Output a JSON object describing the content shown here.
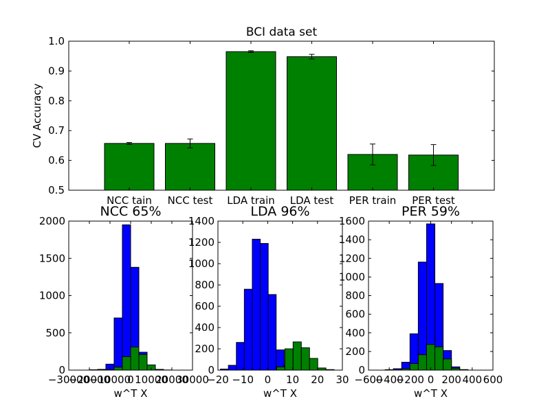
{
  "chart_data": [
    {
      "type": "bar",
      "title": "BCI data set",
      "xlabel": "",
      "ylabel": "CV Accuracy",
      "ylim": [
        0.5,
        1.0
      ],
      "yticks": [
        "0.5",
        "0.6",
        "0.7",
        "0.8",
        "0.9",
        "1.0"
      ],
      "categories": [
        "NCC tain",
        "NCC test",
        "LDA train",
        "LDA test",
        "PER train",
        "PER test"
      ],
      "values": [
        0.657,
        0.657,
        0.965,
        0.948,
        0.62,
        0.618
      ],
      "errors": [
        0.003,
        0.015,
        0.003,
        0.008,
        0.035,
        0.035
      ],
      "bar_color": "#008000",
      "grid": false
    },
    {
      "type": "histogram",
      "title": "NCC 65%",
      "xlabel": "w^T X",
      "ylabel": "",
      "xlim": [
        -30000,
        30000
      ],
      "ylim": [
        0,
        2000
      ],
      "xticks": [
        "−30000",
        "−20000",
        "−10000",
        "0",
        "10000",
        "20000",
        "30000"
      ],
      "yticks": [
        "0",
        "500",
        "1000",
        "1500",
        "2000"
      ],
      "series": [
        {
          "color": "#0000ff",
          "bin_edges": [
            -20000,
            -16000,
            -12000,
            -8000,
            -4000,
            0,
            4000,
            8000,
            12000,
            16000,
            20000
          ],
          "counts": [
            5,
            10,
            80,
            700,
            1950,
            1380,
            240,
            30,
            5,
            0
          ]
        },
        {
          "color": "#008000",
          "bin_edges": [
            -20000,
            -16000,
            -12000,
            -8000,
            -4000,
            0,
            4000,
            8000,
            12000,
            16000,
            20000
          ],
          "counts": [
            0,
            0,
            5,
            40,
            180,
            310,
            210,
            70,
            10,
            2
          ]
        }
      ]
    },
    {
      "type": "histogram",
      "title": "LDA 96%",
      "xlabel": "w^T X",
      "ylabel": "",
      "xlim": [
        -20,
        30
      ],
      "ylim": [
        0,
        1400
      ],
      "xticks": [
        "−20",
        "−10",
        "0",
        "10",
        "20",
        "30"
      ],
      "yticks": [
        "0",
        "200",
        "400",
        "600",
        "800",
        "1000",
        "1200",
        "1400"
      ],
      "series": [
        {
          "color": "#0000ff",
          "bin_edges": [
            -19,
            -15.8,
            -12.6,
            -9.4,
            -6.2,
            -3.0,
            0.2,
            3.4,
            6.6,
            9.8,
            13.0
          ],
          "counts": [
            10,
            45,
            260,
            760,
            1230,
            1190,
            710,
            190,
            50,
            10
          ]
        },
        {
          "color": "#008000",
          "bin_edges": [
            -3,
            0.3,
            3.6,
            6.9,
            10.2,
            13.5,
            16.8,
            20.1,
            23.4,
            26.7,
            30.0
          ],
          "counts": [
            0,
            0,
            30,
            200,
            265,
            210,
            110,
            20,
            5,
            0
          ]
        }
      ]
    },
    {
      "type": "histogram",
      "title": "PER 59%",
      "xlabel": "w^T X",
      "ylabel": "",
      "xlim": [
        -600,
        600
      ],
      "ylim": [
        0,
        1600
      ],
      "xticks": [
        "−600",
        "−400",
        "−200",
        "0",
        "200",
        "400",
        "600"
      ],
      "yticks": [
        "0",
        "200",
        "400",
        "600",
        "800",
        "1000",
        "1200",
        "1400",
        "1600"
      ],
      "series": [
        {
          "color": "#0000ff",
          "bin_edges": [
            -440,
            -360,
            -280,
            -200,
            -120,
            -40,
            40,
            120,
            200,
            280,
            360,
            440
          ],
          "counts": [
            5,
            15,
            85,
            390,
            1160,
            1570,
            930,
            210,
            35,
            5,
            0
          ]
        },
        {
          "color": "#008000",
          "bin_edges": [
            -440,
            -360,
            -280,
            -200,
            -120,
            -40,
            40,
            120,
            200,
            280,
            360,
            440
          ],
          "counts": [
            0,
            2,
            15,
            70,
            165,
            275,
            250,
            120,
            20,
            5,
            0
          ]
        }
      ]
    }
  ]
}
